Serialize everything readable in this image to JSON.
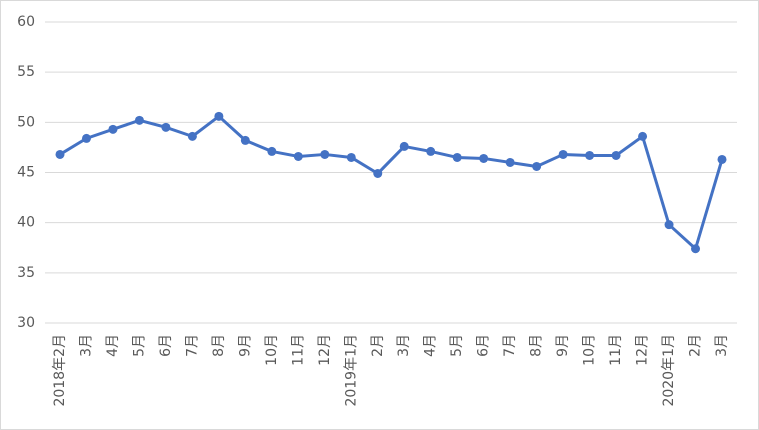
{
  "chart_data": {
    "type": "line",
    "categories": [
      "2018年2月",
      "3月",
      "4月",
      "5月",
      "6月",
      "7月",
      "8月",
      "9月",
      "10月",
      "11月",
      "12月",
      "2019年1月",
      "2月",
      "3月",
      "4月",
      "5月",
      "6月",
      "7月",
      "8月",
      "9月",
      "10月",
      "11月",
      "12月",
      "2020年1月",
      "2月",
      "3月"
    ],
    "values": [
      46.8,
      48.4,
      49.3,
      50.2,
      49.5,
      48.6,
      50.6,
      48.2,
      47.1,
      46.6,
      46.8,
      46.5,
      44.9,
      47.6,
      47.1,
      46.5,
      46.4,
      46.0,
      45.6,
      46.8,
      46.7,
      46.7,
      48.6,
      39.8,
      37.4,
      46.3
    ],
    "color": "#4472c4",
    "ylim": [
      30,
      60
    ],
    "yticks": [
      30,
      35,
      40,
      45,
      50,
      55,
      60
    ],
    "grid": true
  }
}
